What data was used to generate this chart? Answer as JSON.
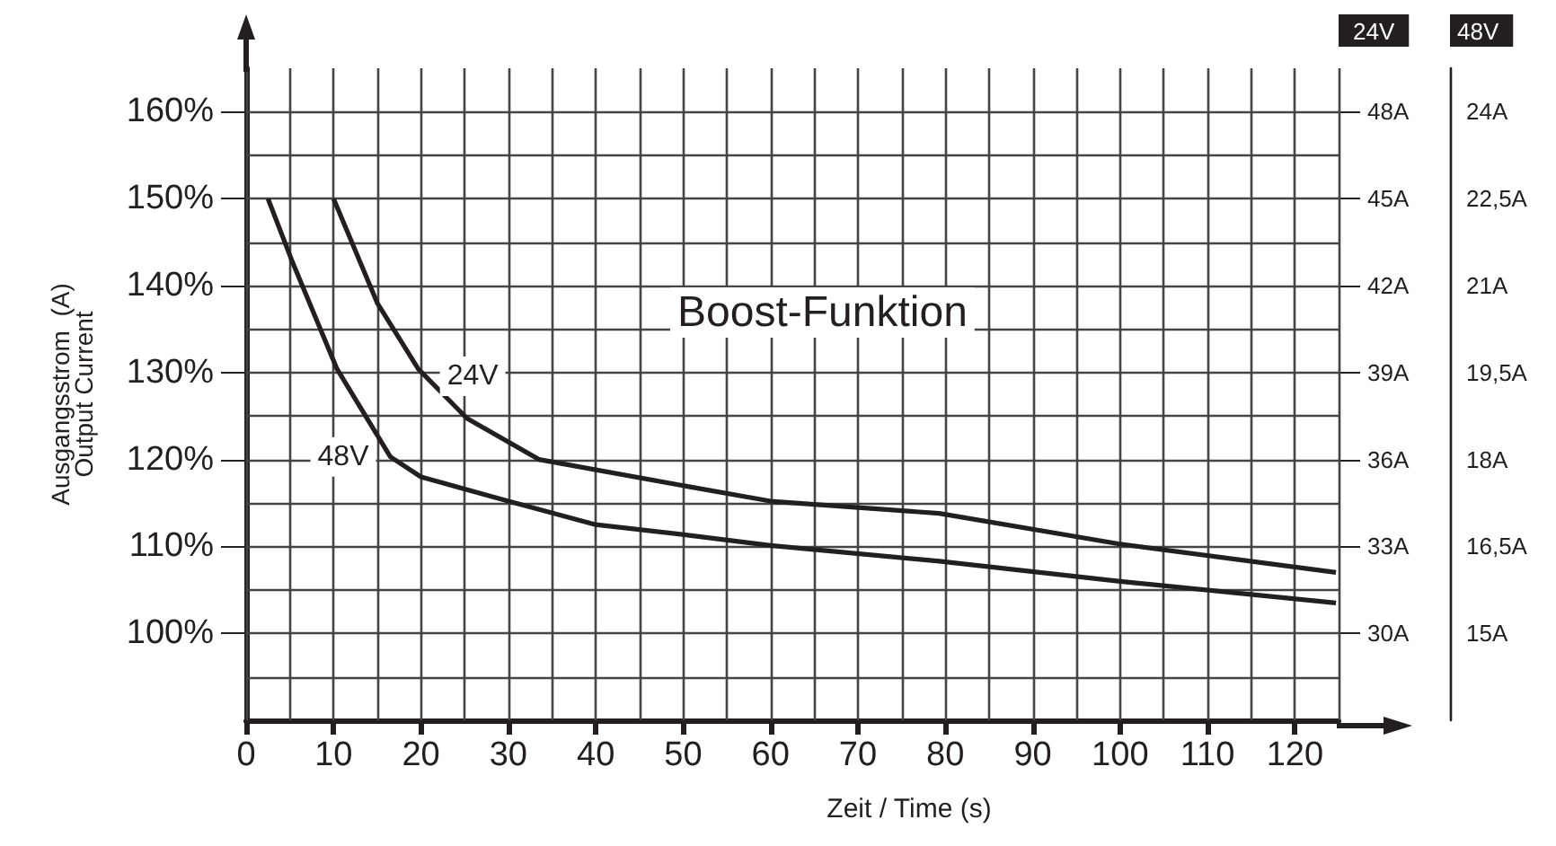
{
  "chart_data": {
    "type": "line",
    "xlabel": "Zeit / Time (s)",
    "ylabel": "Ausgangsstrom  (A)\nOutput Current",
    "y2label": "24V",
    "y3label": "48V",
    "annotations": [
      "Boost-Funktion"
    ],
    "series": [
      {
        "name": "24V",
        "color": "#231f20",
        "x": [
          10,
          15,
          19.7,
          25.3,
          33.5,
          50.5,
          60,
          79.3,
          99.8,
          124.7
        ],
        "values": [
          150,
          138,
          130.4,
          124.7,
          120,
          116.9,
          115.2,
          113.8,
          110.3,
          107
        ]
      },
      {
        "name": "48V",
        "color": "#231f20",
        "x": [
          2.5,
          5.3,
          10.4,
          16.5,
          20,
          30,
          40,
          50.5,
          60,
          79.3,
          99.8,
          124.7
        ],
        "values": [
          150,
          142.7,
          130.4,
          120.3,
          118,
          115.2,
          112.5,
          111.3,
          110.1,
          108.3,
          106,
          103.5
        ]
      }
    ],
    "xlim": [
      0,
      125
    ],
    "xticks": [
      0,
      {
        "value": 5,
        "label": null
      },
      10,
      {
        "value": 15,
        "label": null
      },
      20,
      {
        "value": 25,
        "label": null
      },
      30,
      {
        "value": 35,
        "label": null
      },
      40,
      {
        "value": 45,
        "label": null
      },
      50,
      {
        "value": 55,
        "label": null
      },
      60,
      {
        "value": 65,
        "label": null
      },
      70,
      {
        "value": 75,
        "label": null
      },
      80,
      {
        "value": 85,
        "label": null
      },
      90,
      {
        "value": 95,
        "label": null
      },
      100,
      {
        "value": 105,
        "label": null
      },
      110,
      {
        "value": 115,
        "label": null
      },
      120,
      {
        "value": 125,
        "label": null
      }
    ],
    "ylim": [
      90,
      165
    ],
    "yticks": [
      {
        "value": 95,
        "label": null
      },
      {
        "value": 100,
        "label": "100%"
      },
      {
        "value": 105,
        "label": null
      },
      {
        "value": 110,
        "label": "110%"
      },
      {
        "value": 115,
        "label": null
      },
      {
        "value": 120,
        "label": "120%"
      },
      {
        "value": 125,
        "label": null
      },
      {
        "value": 130,
        "label": "130%"
      },
      {
        "value": 135,
        "label": null
      },
      {
        "value": 140,
        "label": "140%"
      },
      {
        "value": 145,
        "label": null
      },
      {
        "value": 150,
        "label": "150%"
      },
      {
        "value": 155,
        "label": null
      },
      {
        "value": 160,
        "label": "160%"
      }
    ],
    "y2lim": [
      27,
      49.5
    ],
    "y2ticks": [
      {
        "value": 30,
        "label": "30A"
      },
      {
        "value": 33,
        "label": "33A"
      },
      {
        "value": 36,
        "label": "36A"
      },
      {
        "value": 39,
        "label": "39A"
      },
      {
        "value": 42,
        "label": "42A"
      },
      {
        "value": 45,
        "label": "45A"
      },
      {
        "value": 48,
        "label": "48A"
      }
    ],
    "y3lim": [
      13.5,
      24.75
    ],
    "y3ticks": [
      {
        "value": 15,
        "label": "15A"
      },
      {
        "value": 16.5,
        "label": "16,5A"
      },
      {
        "value": 18,
        "label": "18A"
      },
      {
        "value": 19.5,
        "label": "19,5A"
      },
      {
        "value": 21,
        "label": "21A"
      },
      {
        "value": 22.5,
        "label": "22,5A"
      },
      {
        "value": 24,
        "label": "24A"
      }
    ],
    "grid": true,
    "legend": false,
    "marker": "none",
    "line_style": "solid"
  }
}
